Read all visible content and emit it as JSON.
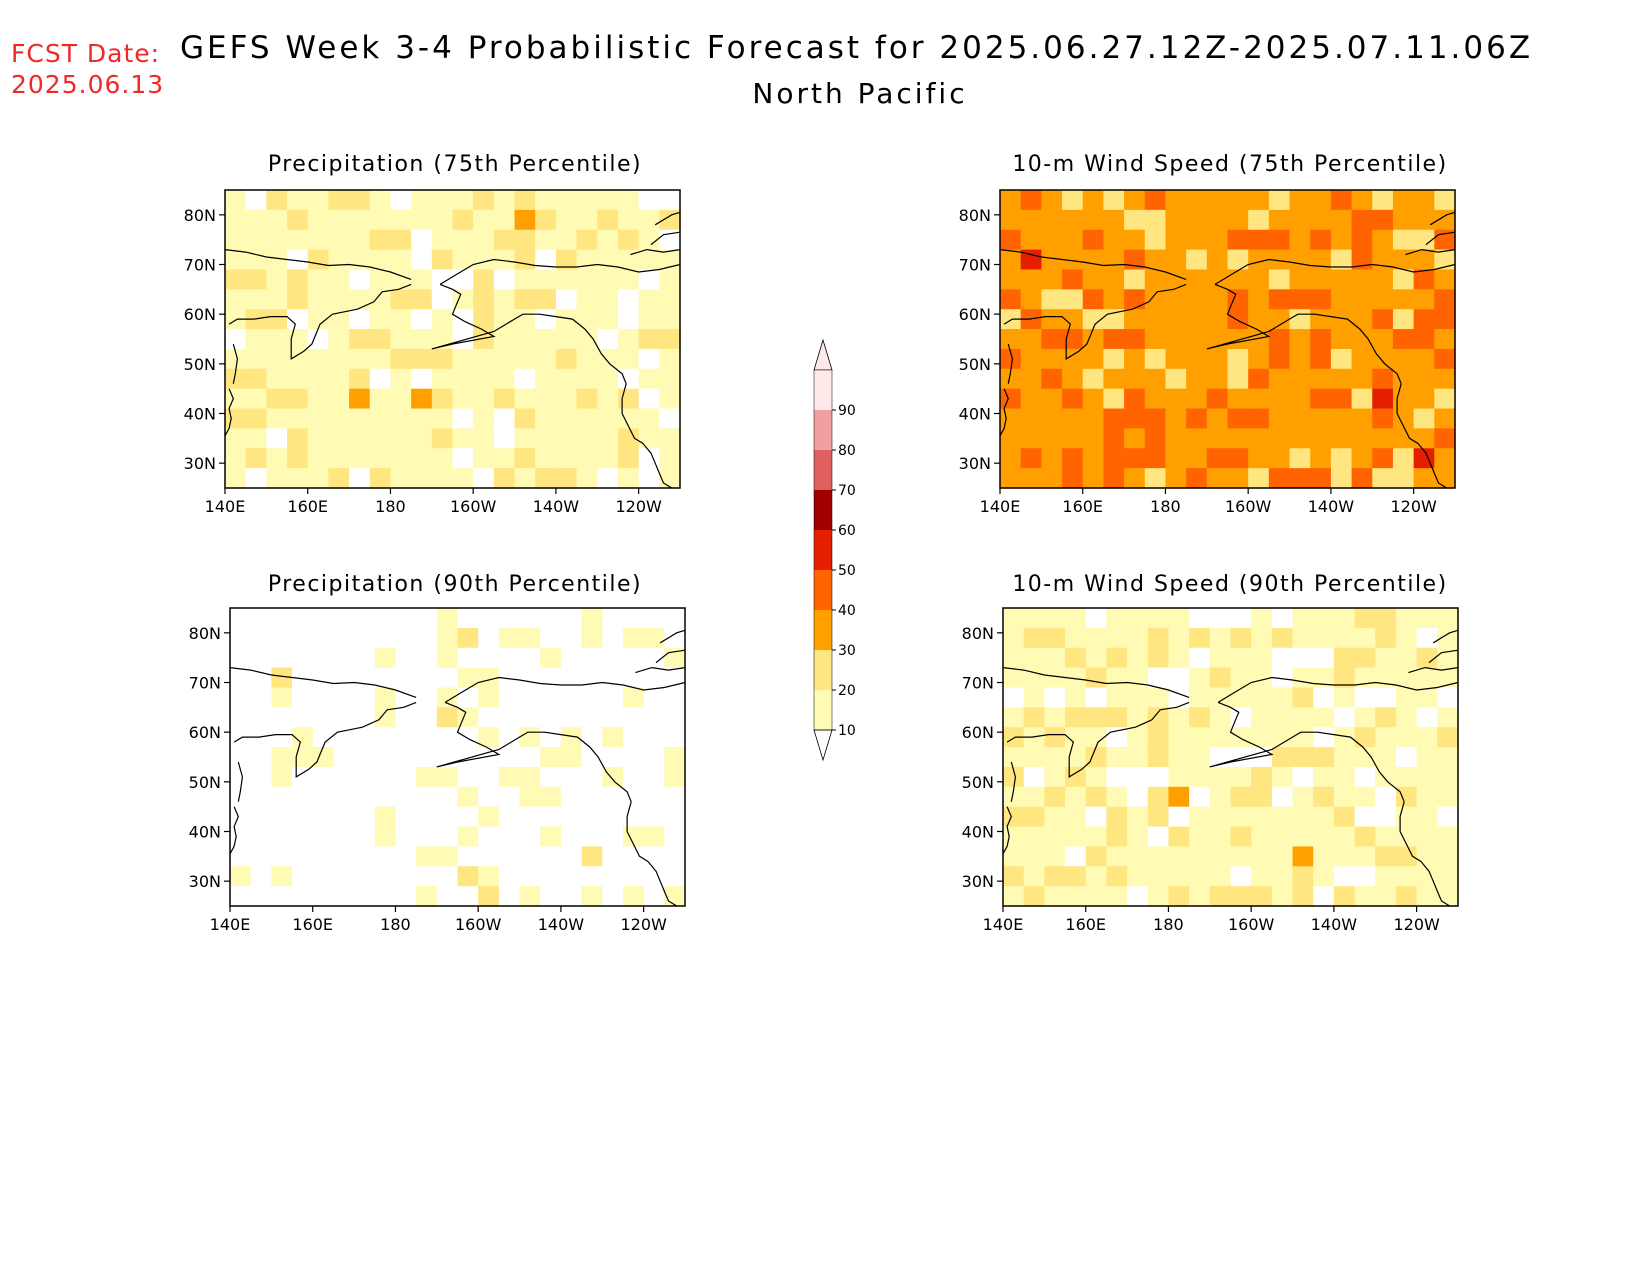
{
  "header": {
    "fcst_label": "FCST Date:",
    "fcst_date": "2025.06.13",
    "title": "GEFS Week 3-4 Probabilistic Forecast for 2025.06.27.12Z-2025.07.11.06Z",
    "subtitle": "North Pacific"
  },
  "axes": {
    "lon_labels": [
      "140E",
      "160E",
      "180",
      "160W",
      "140W",
      "120W"
    ],
    "lat_labels": [
      "80N",
      "70N",
      "60N",
      "50N",
      "40N",
      "30N"
    ]
  },
  "colors": {
    "coast": "#000000",
    "none": "#ffffff"
  },
  "colorbar": {
    "levels": [
      10,
      20,
      30,
      40,
      50,
      60,
      70,
      80,
      90
    ],
    "labels": [
      "10",
      "20",
      "30",
      "40",
      "50",
      "60",
      "70",
      "80",
      "90"
    ],
    "colors": [
      "#fffab4",
      "#ffe680",
      "#ffa000",
      "#ff6400",
      "#e61e00",
      "#a00000",
      "#e06060",
      "#f0a0a0",
      "#ffe8e8"
    ]
  },
  "panels": [
    {
      "id": "precip75",
      "title": "Precipitation (75th Percentile)",
      "base_level": 1,
      "palette": [
        "#ffffff",
        "#fffab4",
        "#ffe680",
        "#ffa000",
        "#ff6400",
        "#e61e00"
      ]
    },
    {
      "id": "wind75",
      "title": "10-m Wind Speed (75th Percentile)",
      "base_level": 3,
      "palette": [
        "#ffffff",
        "#fffab4",
        "#ffe680",
        "#ffa000",
        "#ff6400",
        "#e61e00"
      ]
    },
    {
      "id": "precip90",
      "title": "Precipitation (90th Percentile)",
      "base_level": 0,
      "palette": [
        "#ffffff",
        "#fffab4",
        "#ffe680",
        "#ffa000",
        "#ff6400",
        "#e61e00"
      ]
    },
    {
      "id": "wind90",
      "title": "10-m Wind Speed (90th Percentile)",
      "base_level": 1,
      "palette": [
        "#ffffff",
        "#fffab4",
        "#ffe680",
        "#ffa000",
        "#ff6400",
        "#e61e00"
      ]
    }
  ]
}
